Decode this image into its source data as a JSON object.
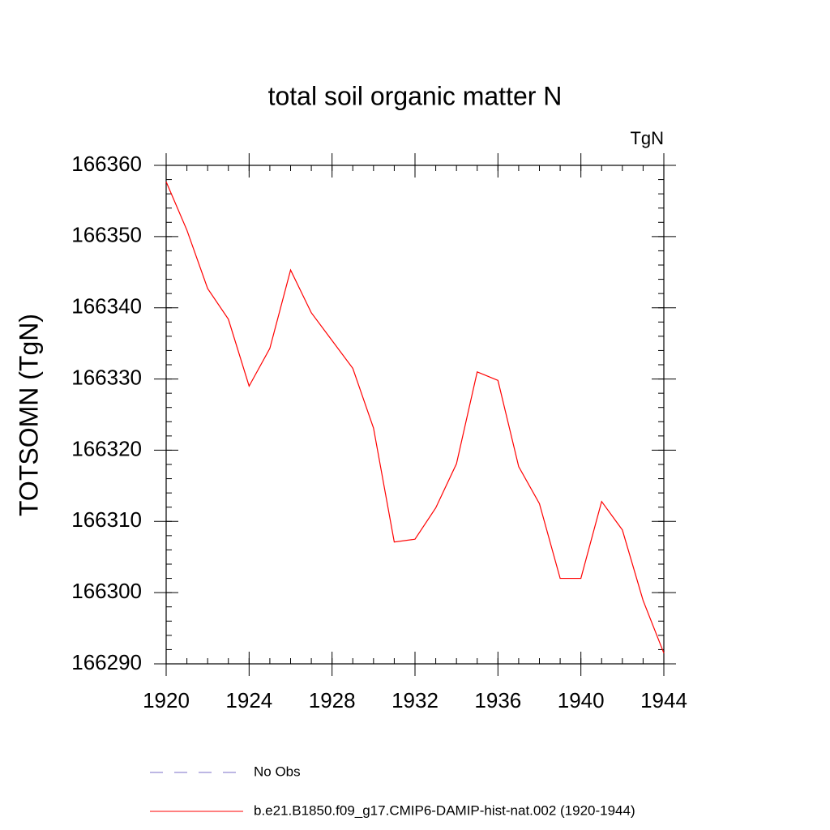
{
  "chart_data": {
    "type": "line",
    "title": "total soil organic matter N",
    "units": "TgN",
    "y_label": "TOTSOMN  (TgN)",
    "x": [
      1920,
      1921,
      1922,
      1923,
      1924,
      1925,
      1926,
      1927,
      1928,
      1929,
      1930,
      1931,
      1932,
      1933,
      1934,
      1935,
      1936,
      1937,
      1938,
      1939,
      1940,
      1941,
      1942,
      1943,
      1944
    ],
    "series": [
      {
        "name": "b.e21.B1850.f09_g17.CMIP6-DAMIP-hist-nat.002 (1920-1944)",
        "color": "#ff0000",
        "values": [
          166357.7,
          166350.9,
          166342.7,
          166338.4,
          166329.0,
          166334.3,
          166345.3,
          166339.3,
          166335.4,
          166331.5,
          166323.1,
          166307.1,
          166307.5,
          166311.9,
          166318.1,
          166331.0,
          166329.8,
          166317.7,
          166312.5,
          166302.0,
          166302.0,
          166312.8,
          166308.8,
          166298.9,
          166291.5
        ]
      }
    ],
    "legend_entries": [
      {
        "label": "No Obs",
        "color": "#7b6fc8",
        "dashed": true
      }
    ],
    "xlim": [
      1920,
      1944
    ],
    "xticks": [
      1920,
      1924,
      1928,
      1932,
      1936,
      1940,
      1944
    ],
    "ylim": [
      166290,
      166360
    ],
    "yticks": [
      166290,
      166300,
      166310,
      166320,
      166330,
      166340,
      166350,
      166360
    ]
  }
}
